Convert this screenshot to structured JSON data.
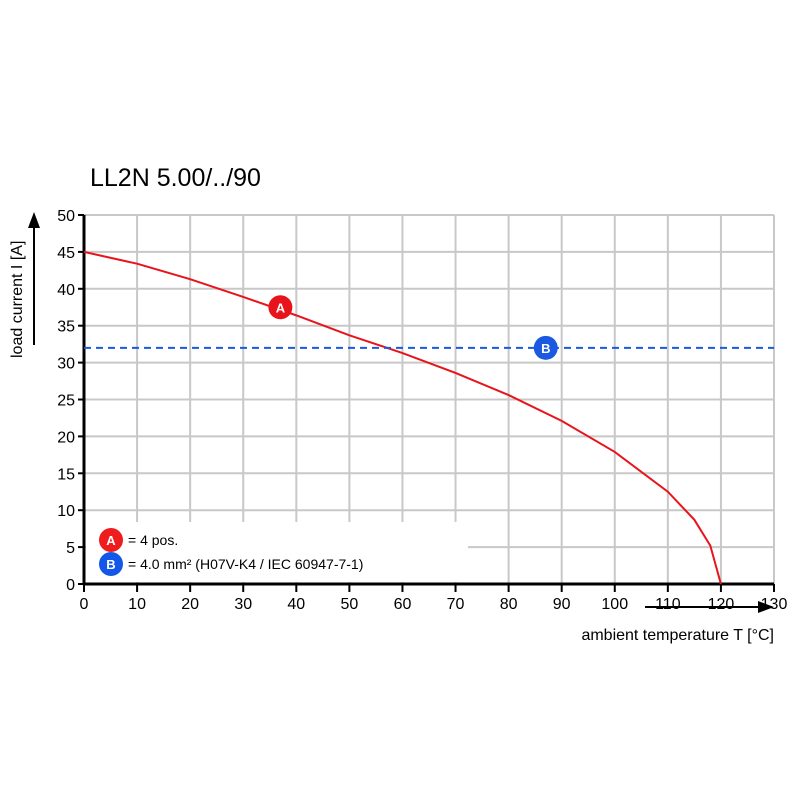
{
  "chart_data": {
    "type": "line",
    "title": "LL2N 5.00/../90",
    "xlabel": "ambient temperature T [°C]",
    "ylabel": "load current I [A]",
    "xlim": [
      0,
      130
    ],
    "ylim": [
      0,
      50
    ],
    "xticks": [
      0,
      10,
      20,
      30,
      40,
      50,
      60,
      70,
      80,
      90,
      100,
      110,
      120,
      130
    ],
    "yticks": [
      0,
      5,
      10,
      15,
      20,
      25,
      30,
      35,
      40,
      45,
      50
    ],
    "grid": true,
    "legend_placement": "bottom-left",
    "series": [
      {
        "name": "A",
        "color": "#e8141c",
        "style": "solid",
        "x": [
          0,
          10,
          20,
          30,
          40,
          50,
          60,
          70,
          80,
          90,
          100,
          110,
          115,
          118,
          120
        ],
        "y": [
          45,
          43.4,
          41.3,
          38.9,
          36.4,
          33.7,
          31.3,
          28.6,
          25.6,
          22.1,
          17.9,
          12.5,
          8.7,
          5.2,
          0
        ],
        "marker_at": [
          37,
          37.5
        ]
      },
      {
        "name": "B",
        "color": "#1a5ae0",
        "style": "dashed",
        "x": [
          0,
          130
        ],
        "y": [
          32,
          32
        ],
        "marker_at": [
          87,
          32
        ]
      }
    ],
    "legend": [
      {
        "key": "A",
        "text": "= 4 pos.",
        "color": "#ee1c1c"
      },
      {
        "key": "B",
        "text": "= 4.0 mm² (H07V-K4 / IEC 60947-7-1)",
        "color": "#1357e8"
      }
    ]
  }
}
